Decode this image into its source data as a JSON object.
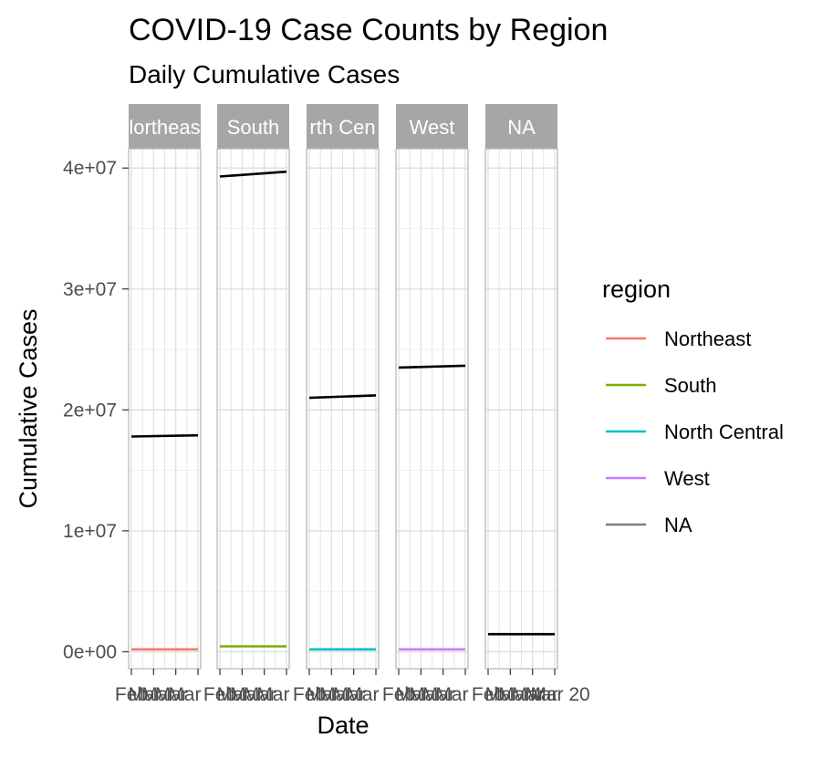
{
  "chart_data": {
    "type": "line",
    "title": "COVID-19 Case Counts by Region",
    "subtitle": "Daily Cumulative Cases",
    "xlabel": "Date",
    "ylabel": "Cumulative Cases",
    "ylim": [
      -1400000,
      41600000
    ],
    "y_ticks": [
      0,
      10000000,
      20000000,
      30000000,
      40000000
    ],
    "y_tick_labels": [
      "0e+00",
      "1e+07",
      "2e+07",
      "3e+07",
      "4e+07"
    ],
    "x_tick_labels_overlapping": [
      "Feb",
      "Mar",
      "Mar",
      "Mar",
      "Mar",
      "Mar 20"
    ],
    "facets": [
      "Northeast",
      "South",
      "North Central",
      "West",
      "NA"
    ],
    "facet_strip_labels": [
      "lortheas",
      "South",
      "rth Cen",
      "West",
      "NA"
    ],
    "x_range": [
      0,
      1
    ],
    "legend": {
      "title": "region",
      "position": "right",
      "entries": [
        {
          "label": "Northeast",
          "color": "#F8766D"
        },
        {
          "label": "South",
          "color": "#7CAE00"
        },
        {
          "label": "North Central",
          "color": "#00BFC4"
        },
        {
          "label": "West",
          "color": "#C77CFF"
        },
        {
          "label": "NA",
          "color": "#7F7F7F"
        }
      ]
    },
    "series": [
      {
        "facet": "Northeast",
        "color": "#F8766D",
        "x": [
          0,
          1
        ],
        "y": [
          200000,
          200000
        ]
      },
      {
        "facet": "Northeast",
        "color": "#000000",
        "x": [
          0,
          1
        ],
        "y": [
          17800000,
          17900000
        ]
      },
      {
        "facet": "South",
        "color": "#7CAE00",
        "x": [
          0,
          1
        ],
        "y": [
          450000,
          450000
        ]
      },
      {
        "facet": "South",
        "color": "#000000",
        "x": [
          0,
          1
        ],
        "y": [
          39300000,
          39700000
        ]
      },
      {
        "facet": "North Central",
        "color": "#00BFC4",
        "x": [
          0,
          1
        ],
        "y": [
          200000,
          200000
        ]
      },
      {
        "facet": "North Central",
        "color": "#000000",
        "x": [
          0,
          1
        ],
        "y": [
          21000000,
          21200000
        ]
      },
      {
        "facet": "West",
        "color": "#C77CFF",
        "x": [
          0,
          1
        ],
        "y": [
          200000,
          200000
        ]
      },
      {
        "facet": "West",
        "color": "#000000",
        "x": [
          0,
          1
        ],
        "y": [
          23500000,
          23650000
        ]
      },
      {
        "facet": "NA",
        "color": "#000000",
        "x": [
          0,
          1
        ],
        "y": [
          1450000,
          1450000
        ]
      }
    ],
    "grid": true,
    "theme": "light"
  }
}
